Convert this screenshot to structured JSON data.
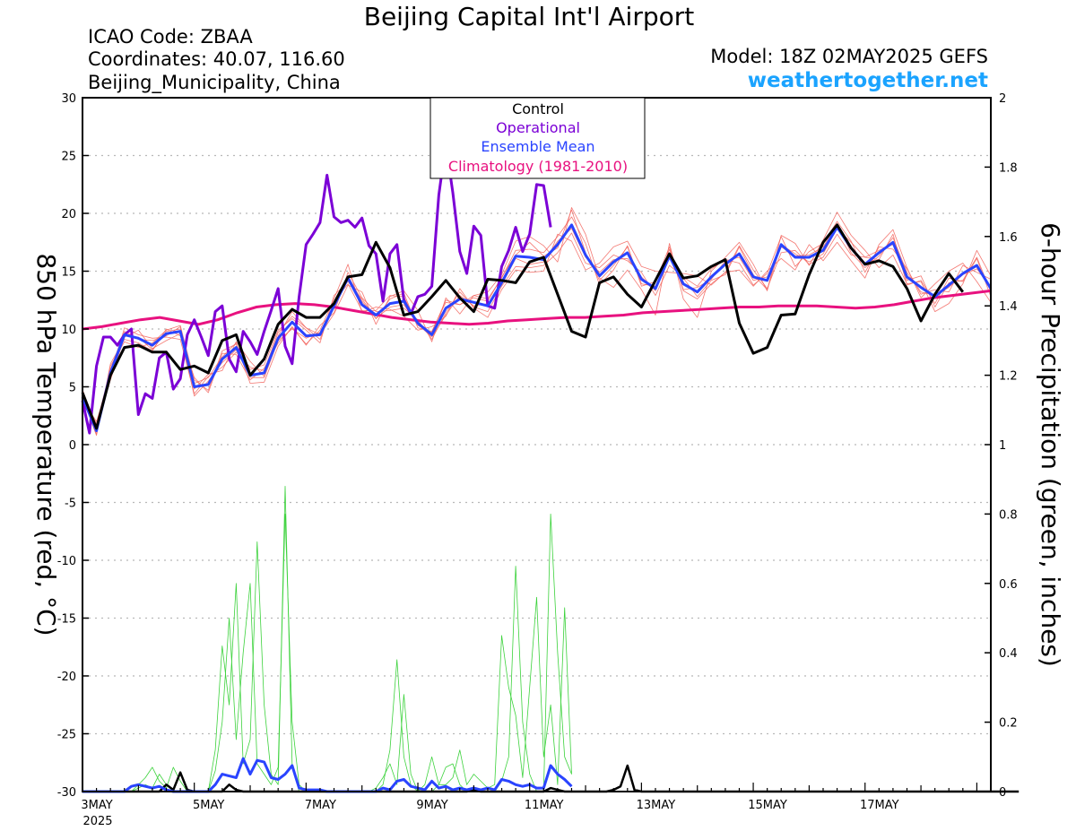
{
  "header": {
    "title": "Beijing Capital Int'l Airport",
    "icao": "ICAO Code: ZBAA",
    "coords": "Coordinates: 40.07, 116.60",
    "region": "Beijing_Municipality, China",
    "model": "Model: 18Z 02MAY2025 GEFS",
    "site": "weathertogether.net"
  },
  "colors": {
    "control": "#000000",
    "operational": "#7b00d6",
    "ensemble_mean": "#2a44ff",
    "climatology": "#e8117f",
    "members": "#f2625a",
    "precip": "#3cd23c",
    "site": "#1aa3ff",
    "grid": "#b8b8b8"
  },
  "chart_data": {
    "type": "line",
    "title": "Beijing Capital Int'l Airport",
    "ylabel": "850 hPa Temperature (red, °C)",
    "y2label": "6-hour Precipitation (green, inches)",
    "ylim": [
      -30,
      30
    ],
    "y2lim": [
      0,
      2
    ],
    "x_unit": "6-hourly steps from 3MAY2025 00Z",
    "xlim": [
      0,
      65
    ],
    "x_ticks": [
      {
        "step": 0,
        "label": "3MAY",
        "sub": "2025"
      },
      {
        "step": 8,
        "label": "5MAY"
      },
      {
        "step": 16,
        "label": "7MAY"
      },
      {
        "step": 24,
        "label": "9MAY"
      },
      {
        "step": 32,
        "label": "11MAY"
      },
      {
        "step": 40,
        "label": "13MAY"
      },
      {
        "step": 48,
        "label": "15MAY"
      },
      {
        "step": 56,
        "label": "17MAY"
      }
    ],
    "y_ticks": [
      30,
      25,
      20,
      15,
      10,
      5,
      0,
      -5,
      -10,
      -15,
      -20,
      -25,
      -30
    ],
    "y2_ticks": [
      2,
      1.8,
      1.6,
      1.4,
      1.2,
      1,
      0.8,
      0.6,
      0.4,
      0.2,
      0
    ],
    "grid": "dotted horizontal",
    "legend": {
      "position": "top-center",
      "entries": [
        {
          "label": "Control",
          "series": "control"
        },
        {
          "label": "Operational",
          "series": "operational"
        },
        {
          "label": "Ensemble Mean",
          "series": "ensemble_mean"
        },
        {
          "label": "Climatology (1981-2010)",
          "series": "climatology"
        }
      ]
    },
    "series": [
      {
        "name": "Control",
        "key": "control",
        "axis": "left",
        "values": [
          4.5,
          1.4,
          6,
          8.4,
          8.6,
          8,
          8,
          6.5,
          6.8,
          6.2,
          9,
          9.5,
          6,
          7.4,
          10.4,
          11.7,
          11,
          11,
          12.2,
          14.5,
          14.7,
          17.5,
          15.3,
          11.2,
          11.5,
          12.8,
          14.2,
          12.7,
          11.5,
          14.3,
          14.2,
          14,
          15.8,
          16.2,
          13,
          9.8,
          9.3,
          14,
          14.5,
          13,
          11.9,
          14.2,
          16.5,
          14.4,
          14.6,
          15.4,
          16,
          10.5,
          7.9,
          8.4,
          11.2,
          11.3,
          14.7,
          17.5,
          19,
          17,
          15.6,
          15.9,
          15.4,
          13.5,
          10.7,
          13,
          14.8,
          13.2
        ]
      },
      {
        "name": "Operational",
        "key": "operational",
        "axis": "left",
        "values": [
          3.8,
          1,
          6.8,
          9.3,
          9.3,
          8.6,
          9.5,
          10,
          2.6,
          4.4,
          4,
          7.5,
          8,
          4.8,
          5.7,
          9.5,
          10.8,
          9.3,
          7.7,
          11.5,
          12,
          7.4,
          6.3,
          9.8,
          8.9,
          7.8,
          9.8,
          11.6,
          13.5,
          8.5,
          7,
          12.8,
          17.3,
          18.2,
          19.2,
          23.3,
          19.7,
          19.2,
          19.4,
          18.8,
          19.6,
          17.2,
          16.5,
          12.4,
          16.5,
          17.3,
          12.5,
          11.3,
          12.8,
          13,
          13.7,
          21.6,
          26,
          21.8,
          16.7,
          14.8,
          18.9,
          18.1,
          12,
          11.8,
          15.4,
          16.8,
          18.8,
          16.7,
          18.2,
          22.5,
          22.4,
          18.8
        ]
      },
      {
        "name": "Ensemble Mean",
        "key": "ensemble_mean",
        "axis": "left",
        "values": [
          4.1,
          1.2,
          6.2,
          9.5,
          9.2,
          8.6,
          9.6,
          9.8,
          5,
          5.2,
          7.4,
          8.4,
          6,
          6.2,
          9.2,
          10.6,
          9.4,
          9.5,
          12,
          14.4,
          12.1,
          11.2,
          12.2,
          12.4,
          10.5,
          9.5,
          11.8,
          12.6,
          12.3,
          12,
          14,
          16.3,
          16.2,
          16,
          17.3,
          19,
          16.4,
          14.6,
          15.8,
          16.6,
          14.3,
          13.5,
          16.3,
          13.9,
          13.2,
          14.5,
          15.6,
          16.5,
          14.5,
          14.2,
          17.3,
          16.2,
          16.2,
          16.8,
          18.8,
          17,
          15.6,
          16.6,
          17.5,
          14.5,
          13.6,
          12.8,
          13.8,
          14.8,
          15.5,
          13.5
        ]
      },
      {
        "name": "Climatology (1981-2010)",
        "key": "climatology",
        "axis": "left",
        "values": [
          10,
          10.2,
          10.5,
          10.8,
          11,
          10.7,
          10.4,
          10.8,
          11.4,
          11.9,
          12.1,
          12.2,
          12.1,
          11.9,
          11.6,
          11.3,
          11,
          10.8,
          10.6,
          10.5,
          10.4,
          10.5,
          10.7,
          10.8,
          10.9,
          11,
          11,
          11.1,
          11.2,
          11.4,
          11.5,
          11.6,
          11.7,
          11.8,
          11.9,
          11.9,
          12,
          12,
          12,
          11.9,
          11.8,
          11.9,
          12.1,
          12.4,
          12.7,
          12.9,
          13.1,
          13.3
        ]
      },
      {
        "name": "Control",
        "key": "control_precip",
        "axis": "right",
        "values": [
          0,
          0,
          0,
          0,
          0,
          0,
          0,
          0,
          0,
          0,
          0,
          0,
          0.02,
          0.005,
          0.055,
          0.005,
          0,
          0,
          0,
          0,
          0,
          0.02,
          0.005,
          0,
          0,
          0,
          0,
          0,
          0,
          0,
          0,
          0,
          0,
          0,
          0,
          0,
          0,
          0,
          0,
          0,
          0,
          0,
          0,
          0,
          0,
          0,
          0,
          0,
          0,
          0,
          0,
          0,
          0,
          0,
          0,
          0,
          0.005,
          0,
          0,
          0,
          0,
          0,
          0,
          0,
          0,
          0,
          0,
          0.01,
          0.005,
          0,
          0,
          0,
          0,
          0,
          0,
          0,
          0.005,
          0.015,
          0.075,
          0.005,
          0,
          0,
          0,
          0,
          0,
          0,
          0,
          0,
          0,
          0,
          0,
          0,
          0,
          0,
          0,
          0,
          0,
          0,
          0,
          0,
          0,
          0,
          0,
          0,
          0,
          0,
          0,
          0,
          0,
          0,
          0,
          0,
          0,
          0,
          0,
          0,
          0,
          0,
          0,
          0,
          0,
          0,
          0,
          0,
          0,
          0,
          0,
          0,
          0,
          0,
          0,
          0,
          0,
          0,
          0
        ]
      },
      {
        "name": "Ensemble Mean",
        "key": "ensemble_mean_precip",
        "axis": "right",
        "values": [
          0,
          0,
          0,
          0,
          0,
          0,
          0,
          0.015,
          0.02,
          0.015,
          0.01,
          0.015,
          0.005,
          0,
          0,
          0,
          0,
          0,
          0,
          0.02,
          0.05,
          0.045,
          0.04,
          0.095,
          0.05,
          0.09,
          0.085,
          0.04,
          0.035,
          0.05,
          0.075,
          0.01,
          0.005,
          0.005,
          0.005,
          0,
          0,
          0,
          0,
          0,
          0,
          0,
          0,
          0.01,
          0.005,
          0.03,
          0.035,
          0.015,
          0.01,
          0.005,
          0.03,
          0.01,
          0.015,
          0.005,
          0.01,
          0.005,
          0.01,
          0.005,
          0.01,
          0.005,
          0.035,
          0.03,
          0.02,
          0.015,
          0.02,
          0.01,
          0.01,
          0.075,
          0.05,
          0.035,
          0.015
        ]
      }
    ],
    "ensemble_members_temperature": [
      [
        4.3,
        1.8,
        6.5,
        9.8,
        9.1,
        9,
        9.4,
        10.2,
        4.8,
        6.1,
        6.4,
        8.9,
        7.2,
        5.9,
        9.4,
        11.5,
        10.1,
        9.5,
        11.3,
        13.8,
        13.2,
        10.4,
        12.8,
        13.3,
        11.6,
        8.9,
        12.7,
        11.3,
        12.9,
        13.2,
        14.7,
        17.6,
        18,
        17.2,
        15.8,
        20.5,
        18.2,
        14.4,
        13.6,
        15.1,
        13.4,
        11.2,
        17.4,
        12.6,
        11,
        15,
        16.2,
        17.5,
        15.6,
        13.3,
        18.1,
        17.4,
        15.5,
        17.7,
        20.1,
        18.1,
        16.8,
        15.3,
        16.4,
        13.9,
        14.1,
        11.5,
        12.2,
        13.9,
        16.8,
        14.6
      ],
      [
        4,
        0.8,
        7,
        9.1,
        8.8,
        8.1,
        10,
        9.4,
        5.8,
        4.5,
        7.9,
        7.8,
        5.6,
        6.6,
        8.8,
        10.1,
        8.7,
        9.9,
        12.6,
        15.6,
        11.4,
        11.9,
        11.7,
        11.1,
        9.9,
        10.2,
        11.1,
        13.5,
        11.8,
        11,
        13.4,
        15.1,
        14.9,
        15,
        18.2,
        17.6,
        15.1,
        15.7,
        17.1,
        17.6,
        15.4,
        15,
        14.9,
        14.8,
        14.6,
        13.8,
        14.9,
        15.1,
        13.7,
        15,
        16.1,
        15.1,
        17.3,
        15.9,
        17.5,
        15.9,
        14.4,
        17.3,
        18.6,
        15.3,
        12.7,
        13.9,
        15,
        15.7,
        14.1,
        12.3
      ],
      [
        3.6,
        1.5,
        5.6,
        9.3,
        9.9,
        8.3,
        9,
        9.6,
        4.2,
        5.5,
        7.1,
        8.2,
        6.5,
        6.9,
        9.9,
        10.9,
        9.9,
        8.8,
        12.9,
        14.1,
        12.6,
        10.9,
        12.6,
        13.1,
        10.1,
        9.8,
        12.3,
        12.1,
        12.9,
        12.6,
        14.4,
        16.8,
        16.9,
        16.6,
        18,
        19.7,
        17.4,
        13.8,
        15.1,
        17.2,
        13.7,
        14.1,
        17.1,
        13.3,
        12.6,
        13.9,
        14.9,
        17.2,
        15.1,
        13.5,
        16.6,
        16.8,
        15.6,
        16.2,
        18.2,
        16.4,
        16.2,
        16,
        18.2,
        13.8,
        14.2,
        12.2,
        14.4,
        14.1,
        16.1,
        12.8
      ],
      [
        4.8,
        1.1,
        6.8,
        8.9,
        8.4,
        8.8,
        9.9,
        10.3,
        5.6,
        4.7,
        8.1,
        8.7,
        5.3,
        5.4,
        8.5,
        10.2,
        8.6,
        10.3,
        11.4,
        14.9,
        12.7,
        11.5,
        11.6,
        11.8,
        10.8,
        9.1,
        11.4,
        13.2,
        11.9,
        11.5,
        13.7,
        15.4,
        15.3,
        15.5,
        16.6,
        18.3,
        15.7,
        15.3,
        16.4,
        15.9,
        14.9,
        12.9,
        15.5,
        14.5,
        13.7,
        15.2,
        16,
        15.7,
        13.8,
        14.8,
        18,
        15.4,
        16.7,
        17.4,
        19.3,
        17.6,
        14.9,
        17.1,
        16.9,
        15.2,
        13,
        13.4,
        13.2,
        15.5,
        14.9,
        14.3
      ],
      [
        3.9,
        2,
        5.9,
        10.1,
        9.5,
        9.2,
        9.3,
        9.1,
        4.4,
        5.9,
        6.7,
        8,
        6.7,
        6.4,
        9.7,
        11.1,
        10.1,
        9.1,
        12.4,
        13.9,
        11.6,
        11.6,
        12.9,
        12.8,
        10.3,
        9.7,
        12.5,
        12.1,
        12.7,
        12.4,
        14.5,
        16.4,
        17.5,
        16.3,
        17,
        20.3,
        16.6,
        14.2,
        15.5,
        17.1,
        13.9,
        13.7,
        16.2,
        14.4,
        12.8,
        14.2,
        14.7,
        17.1,
        14.7,
        13.4,
        17.3,
        16.5,
        15.8,
        16.5,
        18.7,
        17.5,
        16.2,
        16.8,
        17.3,
        14.2,
        14.6,
        11.9,
        14,
        14.2,
        16.2,
        13.2
      ],
      [
        4.5,
        0.9,
        6.4,
        9.4,
        9.3,
        8.2,
        9.8,
        10,
        5.3,
        5.8,
        7.6,
        8.8,
        5.8,
        5.8,
        9,
        10,
        9.2,
        9.7,
        11.8,
        14.6,
        12.4,
        10.9,
        11.9,
        12.1,
        10.4,
        9.3,
        11.2,
        12.9,
        12,
        12.2,
        13.8,
        16.1,
        15.6,
        15.8,
        17.6,
        18.7,
        16.2,
        14.9,
        16,
        16.1,
        14.5,
        13.3,
        16.9,
        13.4,
        13.6,
        14.3,
        15.9,
        16.2,
        14.2,
        14.5,
        17.1,
        16.3,
        16.4,
        17.1,
        19.1,
        16.6,
        15.3,
        16.3,
        17.9,
        14.9,
        13.2,
        12.9,
        13.6,
        14.7,
        15.2,
        13.7
      ]
    ],
    "ensemble_members_precipitation": [
      [
        0,
        0,
        0,
        0,
        0,
        0,
        0,
        0,
        0.02,
        0.04,
        0.07,
        0.03,
        0.01,
        0.07,
        0.03,
        0,
        0,
        0,
        0,
        0.06,
        0.2,
        0.5,
        0.15,
        0.4,
        0.6,
        0.08,
        0.05,
        0.02,
        0.07,
        0.8,
        0.2,
        0.02,
        0,
        0,
        0,
        0,
        0,
        0,
        0,
        0,
        0,
        0,
        0,
        0.02,
        0.12,
        0.38,
        0.1,
        0.02,
        0,
        0,
        0,
        0.02,
        0.07,
        0.08,
        0.02,
        0,
        0,
        0,
        0,
        0,
        0.03,
        0.1,
        0.65,
        0.2,
        0.05,
        0,
        0,
        0.8,
        0.4,
        0.1,
        0.05
      ],
      [
        0,
        0,
        0,
        0,
        0,
        0,
        0,
        0,
        0.01,
        0.02,
        0.01,
        0.05,
        0.02,
        0,
        0,
        0,
        0,
        0,
        0,
        0.12,
        0.42,
        0.25,
        0.6,
        0.08,
        0.15,
        0.72,
        0.25,
        0.05,
        0.02,
        0.88,
        0.08,
        0,
        0,
        0,
        0,
        0,
        0,
        0,
        0,
        0,
        0,
        0,
        0.01,
        0.04,
        0.08,
        0.02,
        0.28,
        0.05,
        0,
        0.02,
        0.1,
        0.02,
        0.02,
        0.04,
        0.12,
        0.02,
        0.05,
        0.03,
        0.01,
        0.02,
        0.45,
        0.3,
        0.22,
        0.04,
        0.3,
        0.56,
        0.1,
        0.25,
        0.02,
        0.53,
        0.05
      ]
    ]
  }
}
